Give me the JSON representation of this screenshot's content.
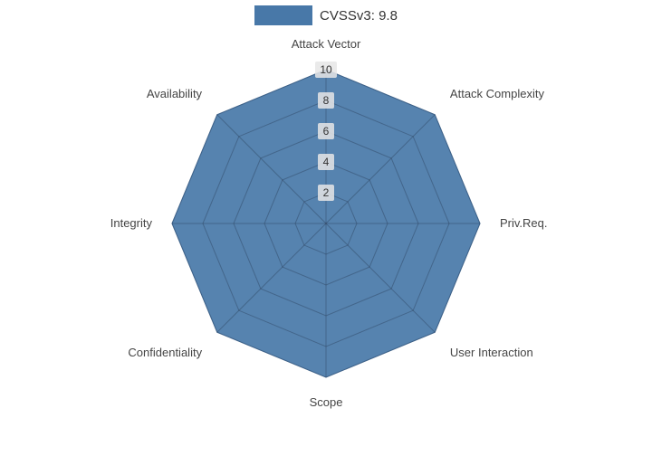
{
  "legend": {
    "label": "CVSSv3: 9.8",
    "swatch_color": "#4878a8"
  },
  "chart_data": {
    "type": "radar",
    "title": "CVSSv3: 9.8",
    "categories": [
      "Attack Vector",
      "Attack Complexity",
      "Priv.Req.",
      "User Interaction",
      "Scope",
      "Confidentiality",
      "Integrity",
      "Availability"
    ],
    "values": [
      10,
      10,
      10,
      10,
      10,
      10,
      10,
      10
    ],
    "ticks": [
      2,
      4,
      6,
      8,
      10
    ],
    "rmax": 10,
    "legend_position": "top-center",
    "grid": true,
    "fill_color": "#4878a8",
    "fill_opacity": 0.92,
    "grid_color": "#b0b0b0",
    "grid_overlay_color": "rgba(40,50,70,0.30)",
    "axis_label_color": "#444444",
    "tick_label_color": "#333333",
    "tick_box_color": "rgba(230,230,230,0.85)"
  }
}
